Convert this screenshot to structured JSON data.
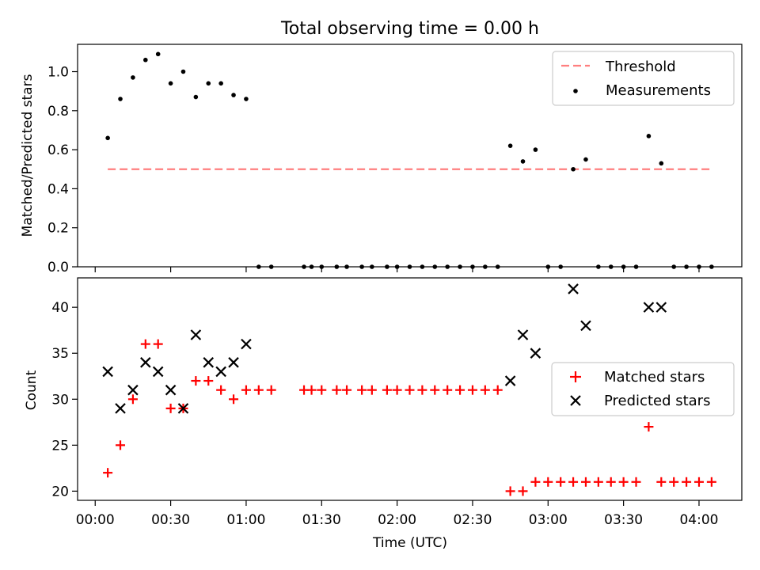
{
  "title": "Total observing time = 0.00 h",
  "chart_data": [
    {
      "type": "scatter",
      "ylabel": "Matched/Predicted stars",
      "xlabel": "",
      "ylim": [
        0,
        1.14
      ],
      "yticks": [
        0.0,
        0.2,
        0.4,
        0.6,
        0.8,
        1.0
      ],
      "ytick_labels": [
        "0.0",
        "0.2",
        "0.4",
        "0.6",
        "0.8",
        "1.0"
      ],
      "legend_position": "top-right",
      "threshold": {
        "name": "Threshold",
        "value": 0.5,
        "x_range": [
          "00:05",
          "04:05"
        ],
        "color": "#ff7f7f"
      },
      "series": [
        {
          "name": "Measurements",
          "marker": "dot",
          "color": "#000000",
          "x": [
            "00:05",
            "00:10",
            "00:15",
            "00:20",
            "00:25",
            "00:30",
            "00:35",
            "00:40",
            "00:45",
            "00:50",
            "00:55",
            "01:00",
            "01:05",
            "01:10",
            "01:23",
            "01:26",
            "01:30",
            "01:36",
            "01:40",
            "01:46",
            "01:50",
            "01:56",
            "02:00",
            "02:05",
            "02:10",
            "02:15",
            "02:20",
            "02:25",
            "02:30",
            "02:35",
            "02:40",
            "02:45",
            "02:50",
            "02:55",
            "03:00",
            "03:05",
            "03:10",
            "03:15",
            "03:20",
            "03:25",
            "03:30",
            "03:35",
            "03:40",
            "03:45",
            "03:50",
            "03:55",
            "04:00",
            "04:05"
          ],
          "y": [
            0.66,
            0.86,
            0.97,
            1.06,
            1.09,
            0.94,
            1.0,
            0.87,
            0.94,
            0.94,
            0.88,
            0.86,
            0,
            0,
            0,
            0,
            0,
            0,
            0,
            0,
            0,
            0,
            0,
            0,
            0,
            0,
            0,
            0,
            0,
            0,
            0,
            0.62,
            0.54,
            0.6,
            0,
            0,
            0.5,
            0.55,
            0,
            0,
            0,
            0,
            0.67,
            0.53,
            0,
            0,
            0,
            0
          ]
        }
      ]
    },
    {
      "type": "scatter",
      "ylabel": "Count",
      "xlabel": "Time (UTC)",
      "ylim": [
        19,
        43.2
      ],
      "yticks": [
        20,
        25,
        30,
        35,
        40
      ],
      "ytick_labels": [
        "20",
        "25",
        "30",
        "35",
        "40"
      ],
      "x_range": [
        "-00:07",
        "04:17"
      ],
      "xticks": [
        "00:00",
        "00:30",
        "01:00",
        "01:30",
        "02:00",
        "02:30",
        "03:00",
        "03:30",
        "04:00"
      ],
      "legend_position": "center-right",
      "series": [
        {
          "name": "Matched stars",
          "marker": "plus",
          "color": "#ff0000",
          "x": [
            "00:05",
            "00:10",
            "00:15",
            "00:20",
            "00:25",
            "00:30",
            "00:35",
            "00:40",
            "00:45",
            "00:50",
            "00:55",
            "01:00",
            "01:05",
            "01:10",
            "01:23",
            "01:26",
            "01:30",
            "01:36",
            "01:40",
            "01:46",
            "01:50",
            "01:56",
            "02:00",
            "02:05",
            "02:10",
            "02:15",
            "02:20",
            "02:25",
            "02:30",
            "02:35",
            "02:40",
            "02:45",
            "02:50",
            "02:55",
            "03:00",
            "03:05",
            "03:10",
            "03:15",
            "03:20",
            "03:25",
            "03:30",
            "03:35",
            "03:40",
            "03:45",
            "03:50",
            "03:55",
            "04:00",
            "04:05"
          ],
          "y": [
            22,
            25,
            30,
            36,
            36,
            29,
            29,
            32,
            32,
            31,
            30,
            31,
            31,
            31,
            31,
            31,
            31,
            31,
            31,
            31,
            31,
            31,
            31,
            31,
            31,
            31,
            31,
            31,
            31,
            31,
            31,
            20,
            20,
            21,
            21,
            21,
            21,
            21,
            21,
            21,
            21,
            21,
            27,
            21,
            21,
            21,
            21,
            21
          ]
        },
        {
          "name": "Predicted stars",
          "marker": "x",
          "color": "#000000",
          "x": [
            "00:05",
            "00:10",
            "00:15",
            "00:20",
            "00:25",
            "00:30",
            "00:35",
            "00:40",
            "00:45",
            "00:50",
            "00:55",
            "01:00",
            "02:45",
            "02:50",
            "02:55",
            "03:10",
            "03:15",
            "03:40",
            "03:45"
          ],
          "y": [
            33,
            29,
            31,
            34,
            33,
            31,
            29,
            37,
            34,
            33,
            34,
            36,
            32,
            37,
            35,
            42,
            38,
            40,
            40
          ]
        }
      ]
    }
  ]
}
